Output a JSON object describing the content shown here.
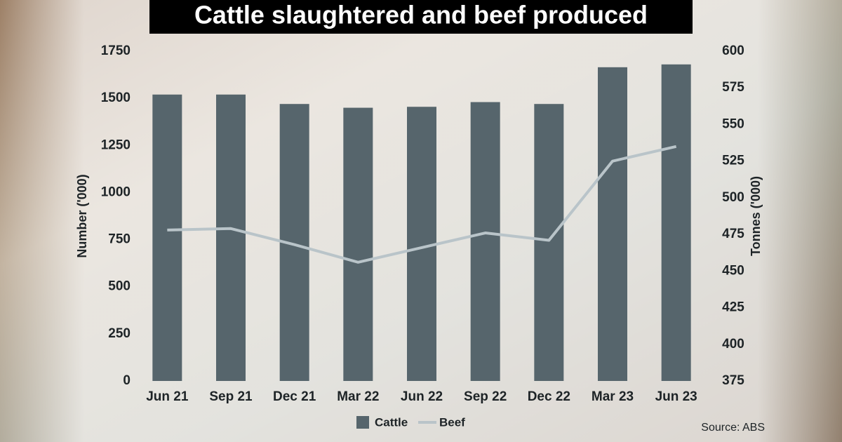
{
  "chart_data": {
    "type": "bar-line",
    "title": "Cattle slaughtered and beef produced",
    "ylabel": "Number ('000)",
    "y2label": "Tonnes ('000)",
    "source": "Source: ABS",
    "categories": [
      "Jun 21",
      "Sep 21",
      "Dec 21",
      "Mar 22",
      "Jun 22",
      "Sep 22",
      "Dec 22",
      "Mar 23",
      "Jun 23"
    ],
    "series": [
      {
        "name": "Cattle",
        "color": "#56656c",
        "type": "bar",
        "values": [
          1520,
          1520,
          1470,
          1450,
          1455,
          1480,
          1470,
          1665,
          1680
        ]
      },
      {
        "name": "Beef",
        "color": "#b9c4c9",
        "type": "line",
        "axis": "y2",
        "values": [
          478,
          479,
          468,
          456,
          466,
          476,
          471,
          525,
          535
        ]
      }
    ],
    "ylim": [
      0,
      1750
    ],
    "yticks": [
      0,
      250,
      500,
      750,
      1000,
      1250,
      1500,
      1750
    ],
    "y2lim": [
      375,
      600
    ],
    "y2ticks": [
      375,
      400,
      425,
      450,
      475,
      500,
      525,
      550,
      575,
      600
    ]
  }
}
